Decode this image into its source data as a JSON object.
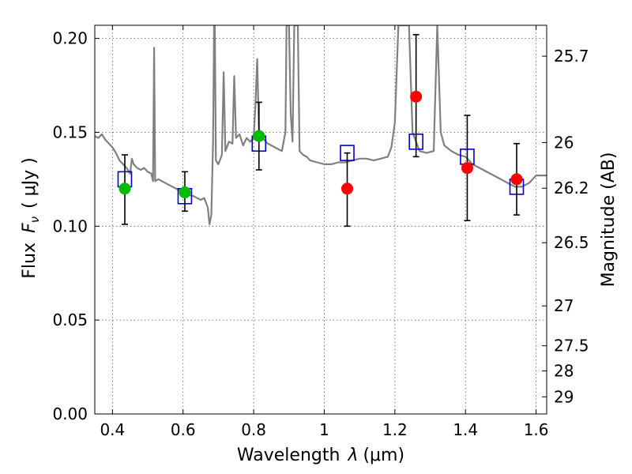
{
  "chart_data": {
    "type": "scatter",
    "xlabel": "Wavelength",
    "xlabel_symbol": "λ",
    "xlabel_unit": "(μm)",
    "ylabel": "Flux",
    "ylabel_symbol": "F",
    "ylabel_sub": "ν",
    "ylabel_unit": "( μJy )",
    "y2label": "Magnitude (AB)",
    "xlim": [
      0.35,
      1.63
    ],
    "ylim": [
      0.0,
      0.207
    ],
    "x_ticks": [
      {
        "value": 0.4,
        "label": "0.4"
      },
      {
        "value": 0.6,
        "label": "0.6"
      },
      {
        "value": 0.8,
        "label": "0.8"
      },
      {
        "value": 1.0,
        "label": "1"
      },
      {
        "value": 1.2,
        "label": "1.2"
      },
      {
        "value": 1.4,
        "label": "1.4"
      },
      {
        "value": 1.6,
        "label": "1.6"
      }
    ],
    "y_ticks": [
      {
        "value": 0.0,
        "label": "0.00"
      },
      {
        "value": 0.05,
        "label": "0.05"
      },
      {
        "value": 0.1,
        "label": "0.10"
      },
      {
        "value": 0.15,
        "label": "0.15"
      },
      {
        "value": 0.2,
        "label": "0.20"
      }
    ],
    "y2_ticks": [
      {
        "mag": 25.7,
        "label": "25.7"
      },
      {
        "mag": 26,
        "label": "26"
      },
      {
        "mag": 26.2,
        "label": "26.2"
      },
      {
        "mag": 26.5,
        "label": "26.5"
      },
      {
        "mag": 27,
        "label": "27"
      },
      {
        "mag": 27.5,
        "label": "27.5"
      },
      {
        "mag": 28,
        "label": "28"
      },
      {
        "mag": 29,
        "label": "29"
      }
    ],
    "grid": true,
    "grid_style": "dotted",
    "colors": {
      "model": "#808080",
      "model_photometry": "#0000cc",
      "detection": "#00bb00",
      "nondetection": "#ff0000",
      "errorbar": "#000000"
    },
    "series": [
      {
        "kind": "line",
        "color": "#808080",
        "points": [
          [
            0.35,
            0.148
          ],
          [
            0.36,
            0.147
          ],
          [
            0.37,
            0.149
          ],
          [
            0.38,
            0.146
          ],
          [
            0.39,
            0.144
          ],
          [
            0.4,
            0.142
          ],
          [
            0.41,
            0.139
          ],
          [
            0.42,
            0.135
          ],
          [
            0.43,
            0.133
          ],
          [
            0.44,
            0.131
          ],
          [
            0.45,
            0.128
          ],
          [
            0.455,
            0.136
          ],
          [
            0.46,
            0.133
          ],
          [
            0.47,
            0.131
          ],
          [
            0.48,
            0.13
          ],
          [
            0.49,
            0.131
          ],
          [
            0.5,
            0.129
          ],
          [
            0.51,
            0.128
          ],
          [
            0.515,
            0.124
          ],
          [
            0.518,
            0.195
          ],
          [
            0.521,
            0.124
          ],
          [
            0.53,
            0.125
          ],
          [
            0.55,
            0.123
          ],
          [
            0.57,
            0.121
          ],
          [
            0.59,
            0.119
          ],
          [
            0.61,
            0.117
          ],
          [
            0.63,
            0.116
          ],
          [
            0.65,
            0.114
          ],
          [
            0.66,
            0.115
          ],
          [
            0.67,
            0.11
          ],
          [
            0.675,
            0.101
          ],
          [
            0.68,
            0.106
          ],
          [
            0.685,
            0.145
          ],
          [
            0.688,
            0.207
          ],
          [
            0.69,
            0.207
          ],
          [
            0.693,
            0.135
          ],
          [
            0.7,
            0.133
          ],
          [
            0.71,
            0.138
          ],
          [
            0.715,
            0.182
          ],
          [
            0.72,
            0.14
          ],
          [
            0.73,
            0.145
          ],
          [
            0.74,
            0.144
          ],
          [
            0.745,
            0.18
          ],
          [
            0.75,
            0.147
          ],
          [
            0.76,
            0.149
          ],
          [
            0.77,
            0.143
          ],
          [
            0.78,
            0.147
          ],
          [
            0.79,
            0.145
          ],
          [
            0.8,
            0.147
          ],
          [
            0.805,
            0.164
          ],
          [
            0.81,
            0.189
          ],
          [
            0.815,
            0.15
          ],
          [
            0.82,
            0.148
          ],
          [
            0.83,
            0.146
          ],
          [
            0.84,
            0.144
          ],
          [
            0.86,
            0.142
          ],
          [
            0.88,
            0.14
          ],
          [
            0.89,
            0.15
          ],
          [
            0.893,
            0.207
          ],
          [
            0.9,
            0.207
          ],
          [
            0.905,
            0.16
          ],
          [
            0.91,
            0.145
          ],
          [
            0.915,
            0.207
          ],
          [
            0.925,
            0.207
          ],
          [
            0.93,
            0.14
          ],
          [
            0.94,
            0.138
          ],
          [
            0.95,
            0.137
          ],
          [
            0.96,
            0.135
          ],
          [
            0.98,
            0.134
          ],
          [
            1.0,
            0.133
          ],
          [
            1.02,
            0.133
          ],
          [
            1.04,
            0.134
          ],
          [
            1.06,
            0.134
          ],
          [
            1.08,
            0.135
          ],
          [
            1.1,
            0.136
          ],
          [
            1.12,
            0.136
          ],
          [
            1.14,
            0.135
          ],
          [
            1.16,
            0.136
          ],
          [
            1.18,
            0.137
          ],
          [
            1.19,
            0.142
          ],
          [
            1.2,
            0.155
          ],
          [
            1.21,
            0.207
          ],
          [
            1.24,
            0.207
          ],
          [
            1.25,
            0.15
          ],
          [
            1.27,
            0.14
          ],
          [
            1.29,
            0.139
          ],
          [
            1.31,
            0.14
          ],
          [
            1.32,
            0.207
          ],
          [
            1.33,
            0.15
          ],
          [
            1.34,
            0.143
          ],
          [
            1.36,
            0.14
          ],
          [
            1.38,
            0.138
          ],
          [
            1.4,
            0.137
          ],
          [
            1.42,
            0.133
          ],
          [
            1.44,
            0.131
          ],
          [
            1.46,
            0.129
          ],
          [
            1.48,
            0.127
          ],
          [
            1.5,
            0.125
          ],
          [
            1.52,
            0.123
          ],
          [
            1.54,
            0.121
          ],
          [
            1.56,
            0.121
          ],
          [
            1.58,
            0.123
          ],
          [
            1.6,
            0.127
          ],
          [
            1.62,
            0.127
          ],
          [
            1.63,
            0.127
          ]
        ]
      },
      {
        "kind": "squares",
        "color": "#0000cc",
        "points": [
          [
            0.435,
            0.125
          ],
          [
            0.605,
            0.116
          ],
          [
            0.815,
            0.144
          ],
          [
            1.065,
            0.139
          ],
          [
            1.26,
            0.145
          ],
          [
            1.405,
            0.137
          ],
          [
            1.545,
            0.121
          ]
        ]
      },
      {
        "kind": "dots",
        "color": "#00bb00",
        "points": [
          {
            "x": 0.435,
            "y": 0.12,
            "yerr_low": 0.101,
            "yerr_high": 0.138
          },
          {
            "x": 0.605,
            "y": 0.118,
            "yerr_low": 0.108,
            "yerr_high": 0.129
          },
          {
            "x": 0.815,
            "y": 0.148,
            "yerr_low": 0.13,
            "yerr_high": 0.166
          }
        ]
      },
      {
        "kind": "dots",
        "color": "#ff0000",
        "points": [
          {
            "x": 1.065,
            "y": 0.12,
            "yerr_low": 0.1,
            "yerr_high": 0.139
          },
          {
            "x": 1.26,
            "y": 0.169,
            "yerr_low": 0.137,
            "yerr_high": 0.202
          },
          {
            "x": 1.405,
            "y": 0.131,
            "yerr_low": 0.103,
            "yerr_high": 0.159
          },
          {
            "x": 1.545,
            "y": 0.125,
            "yerr_low": 0.106,
            "yerr_high": 0.144
          }
        ]
      }
    ]
  }
}
